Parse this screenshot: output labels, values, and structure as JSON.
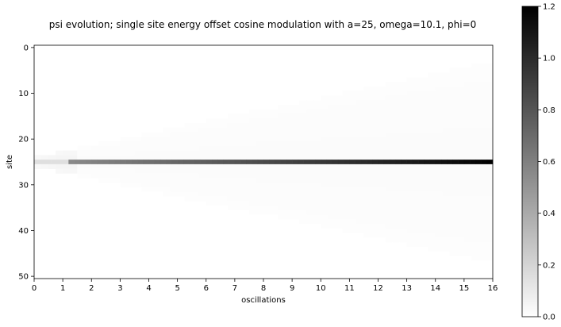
{
  "chart_data": [
    {
      "type": "heatmap",
      "title": "psi evolution; single site energy offset cosine modulation with a=25, omega=10.1, phi=0",
      "xlabel": "oscillations",
      "ylabel": "site",
      "xlim": [
        0,
        16
      ],
      "ylim": [
        50,
        0
      ],
      "x_ticks": [
        0,
        1,
        2,
        3,
        4,
        5,
        6,
        7,
        8,
        9,
        10,
        11,
        12,
        13,
        14,
        15,
        16
      ],
      "y_ticks": [
        0,
        10,
        20,
        30,
        40,
        50
      ],
      "colormap": "gray_r",
      "grid": false,
      "sites": 51,
      "stripe_site": 25,
      "stripe_value_start": 0.5,
      "stripe_value_end": 1.2,
      "spread_sites_at_end": 22,
      "background_value_in_cone": 0.02,
      "colorbar": {
        "range": [
          0,
          1.2
        ],
        "ticks": [
          0.0,
          0.2,
          0.4,
          0.6,
          0.8,
          1.0,
          1.2
        ],
        "tick_labels": [
          "0.0",
          "0.2",
          "0.4",
          "0.6",
          "0.8",
          "1.0",
          "1.2"
        ],
        "placement": "right"
      }
    }
  ]
}
